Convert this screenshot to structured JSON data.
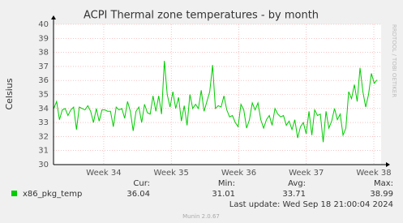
{
  "chart_data": {
    "type": "line",
    "title": "ACPI Thermal zone temperatures - by month",
    "y_label": "Celsius",
    "xlim": [
      33.256,
      38.108
    ],
    "xticks": [
      {
        "value": 34,
        "label": "Week 34"
      },
      {
        "value": 35,
        "label": "Week 35"
      },
      {
        "value": 36,
        "label": "Week 36"
      },
      {
        "value": 37,
        "label": "Week 37"
      },
      {
        "value": 38,
        "label": "Week 38"
      }
    ],
    "ylim": [
      30,
      40
    ],
    "yticks": [
      30,
      31,
      32,
      33,
      34,
      35,
      36,
      37,
      38,
      39,
      40
    ],
    "grid": true,
    "x": [
      33.26,
      33.302,
      33.344,
      33.386,
      33.428,
      33.47,
      33.512,
      33.554,
      33.596,
      33.638,
      33.68,
      33.722,
      33.764,
      33.806,
      33.848,
      33.89,
      33.932,
      33.974,
      34.016,
      34.058,
      34.1,
      34.142,
      34.184,
      34.226,
      34.268,
      34.31,
      34.352,
      34.394,
      34.436,
      34.478,
      34.52,
      34.562,
      34.604,
      34.646,
      34.688,
      34.73,
      34.772,
      34.814,
      34.856,
      34.898,
      34.94,
      34.982,
      35.024,
      35.066,
      35.108,
      35.15,
      35.192,
      35.234,
      35.276,
      35.318,
      35.36,
      35.402,
      35.444,
      35.486,
      35.528,
      35.57,
      35.612,
      35.654,
      35.696,
      35.738,
      35.78,
      35.822,
      35.864,
      35.906,
      35.948,
      35.99,
      36.032,
      36.074,
      36.116,
      36.158,
      36.2,
      36.242,
      36.284,
      36.326,
      36.368,
      36.41,
      36.452,
      36.494,
      36.536,
      36.578,
      36.62,
      36.662,
      36.704,
      36.746,
      36.788,
      36.83,
      36.872,
      36.914,
      36.956,
      36.998,
      37.04,
      37.082,
      37.124,
      37.166,
      37.208,
      37.25,
      37.292,
      37.334,
      37.376,
      37.418,
      37.46,
      37.502,
      37.544,
      37.586,
      37.628,
      37.67,
      37.712,
      37.754,
      37.796,
      37.838,
      37.88,
      37.922,
      37.964,
      38.006,
      38.048
    ],
    "series": [
      {
        "name": "x86_pkg_temp",
        "color": "#00cc00",
        "values": [
          34.0,
          34.5,
          33.2,
          33.9,
          34.0,
          33.5,
          33.9,
          34.1,
          32.5,
          34.1,
          34.0,
          33.9,
          34.2,
          33.8,
          33.0,
          34.0,
          33.1,
          33.9,
          33.9,
          33.8,
          33.8,
          32.7,
          34.1,
          33.9,
          34.0,
          33.3,
          34.5,
          33.8,
          32.4,
          33.8,
          34.1,
          33.0,
          34.3,
          33.7,
          33.6,
          34.9,
          33.8,
          34.9,
          33.6,
          37.4,
          35.0,
          34.1,
          35.2,
          34.0,
          34.8,
          33.1,
          34.2,
          32.8,
          35.0,
          34.0,
          34.3,
          34.0,
          35.3,
          33.8,
          34.5,
          35.2,
          37.1,
          34.0,
          34.2,
          34.1,
          34.9,
          33.9,
          33.4,
          33.5,
          33.0,
          32.7,
          34.3,
          33.9,
          32.6,
          33.2,
          34.4,
          33.9,
          34.4,
          33.2,
          32.6,
          33.2,
          33.5,
          32.8,
          34.0,
          33.6,
          33.4,
          33.5,
          32.8,
          33.1,
          32.5,
          33.2,
          31.9,
          32.7,
          33.0,
          32.2,
          33.8,
          32.1,
          33.9,
          33.5,
          33.6,
          31.6,
          33.8,
          32.6,
          33.1,
          34.0,
          33.2,
          33.6,
          32.1,
          32.6,
          35.2,
          34.7,
          35.7,
          34.5,
          36.9,
          35.2,
          34.1,
          35.0,
          36.5,
          35.8,
          36.04
        ]
      }
    ],
    "stats": {
      "headers": [
        "Cur:",
        "Min:",
        "Avg:",
        "Max:"
      ],
      "values": [
        36.04,
        31.01,
        33.71,
        38.99
      ]
    },
    "last_update": "Last update: Wed Sep 18 21:00:04 2024",
    "watermark": "RRDTOOL / TOBI OETIKER",
    "footer": "Munin 2.0.67"
  }
}
